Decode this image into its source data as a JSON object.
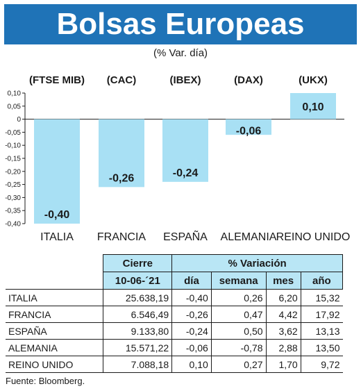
{
  "header": {
    "title": "Bolsas Europeas",
    "subtitle": "(% Var. día)"
  },
  "chart_data": {
    "type": "bar",
    "indices": [
      "(FTSE MIB)",
      "(CAC)",
      "(IBEX)",
      "(DAX)",
      "(UKX)"
    ],
    "categories": [
      "ITALIA",
      "FRANCIA",
      "ESPAÑA",
      "ALEMANIA",
      "REINO UNIDO"
    ],
    "values": [
      -0.4,
      -0.26,
      -0.24,
      -0.06,
      0.1
    ],
    "value_labels": [
      "-0,40",
      "-0,26",
      "-0,24",
      "-0,06",
      "0,10"
    ],
    "ylim": [
      -0.4,
      0.1
    ],
    "yticks": [
      0.1,
      0.05,
      0,
      -0.05,
      -0.1,
      -0.15,
      -0.2,
      -0.25,
      -0.3,
      -0.35,
      -0.4
    ],
    "ytick_labels": [
      "0,10",
      "0,05",
      "0",
      "-0,05",
      "-0,10",
      "-0,15",
      "-0,20",
      "-0,25",
      "-0,30",
      "-0,35",
      "-0,40"
    ],
    "bar_color": "#a8e0f4",
    "grid": false
  },
  "table": {
    "header_cierre": "Cierre",
    "header_variacion": "% Variación",
    "header_date": "10-06-´21",
    "columns": [
      "día",
      "semana",
      "mes",
      "año"
    ],
    "rows": [
      {
        "name": "ITALIA",
        "cierre": "25.638,19",
        "dia": "-0,40",
        "semana": "0,26",
        "mes": "6,20",
        "ano": "15,32"
      },
      {
        "name": "FRANCIA",
        "cierre": "6.546,49",
        "dia": "-0,26",
        "semana": "0,47",
        "mes": "4,42",
        "ano": "17,92"
      },
      {
        "name": "ESPAÑA",
        "cierre": "9.133,80",
        "dia": "-0,24",
        "semana": "0,50",
        "mes": "3,62",
        "ano": "13,13"
      },
      {
        "name": "ALEMANIA",
        "cierre": "15.571,22",
        "dia": "-0,06",
        "semana": "-0,78",
        "mes": "2,88",
        "ano": "13,50"
      },
      {
        "name": "REINO UNIDO",
        "cierre": "7.088,18",
        "dia": "0,10",
        "semana": "0,27",
        "mes": "1,70",
        "ano": "9,72"
      }
    ]
  },
  "footer": {
    "source": "Fuente: Bloomberg."
  }
}
